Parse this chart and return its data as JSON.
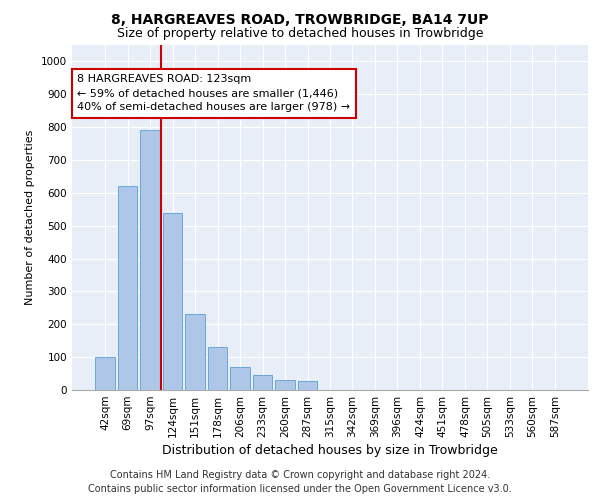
{
  "title": "8, HARGREAVES ROAD, TROWBRIDGE, BA14 7UP",
  "subtitle": "Size of property relative to detached houses in Trowbridge",
  "xlabel": "Distribution of detached houses by size in Trowbridge",
  "ylabel": "Number of detached properties",
  "categories": [
    "42sqm",
    "69sqm",
    "97sqm",
    "124sqm",
    "151sqm",
    "178sqm",
    "206sqm",
    "233sqm",
    "260sqm",
    "287sqm",
    "315sqm",
    "342sqm",
    "369sqm",
    "396sqm",
    "424sqm",
    "451sqm",
    "478sqm",
    "505sqm",
    "533sqm",
    "560sqm",
    "587sqm"
  ],
  "values": [
    100,
    620,
    790,
    540,
    230,
    130,
    70,
    45,
    30,
    28,
    0,
    0,
    0,
    0,
    0,
    0,
    0,
    0,
    0,
    0,
    0
  ],
  "bar_color": "#aec6e8",
  "bar_edge_color": "#5a9fd4",
  "vline_color": "#cc0000",
  "vline_bin_index": 3,
  "annotation_text": "8 HARGREAVES ROAD: 123sqm\n← 59% of detached houses are smaller (1,446)\n40% of semi-detached houses are larger (978) →",
  "annotation_box_color": "#ffffff",
  "annotation_box_edge_color": "#cc0000",
  "annotation_fontsize": 8.0,
  "ylim": [
    0,
    1050
  ],
  "yticks": [
    0,
    100,
    200,
    300,
    400,
    500,
    600,
    700,
    800,
    900,
    1000
  ],
  "footer_line1": "Contains HM Land Registry data © Crown copyright and database right 2024.",
  "footer_line2": "Contains public sector information licensed under the Open Government Licence v3.0.",
  "plot_bg_color": "#e8eef7",
  "title_fontsize": 10,
  "subtitle_fontsize": 9,
  "xlabel_fontsize": 9,
  "ylabel_fontsize": 8,
  "tick_fontsize": 7.5,
  "footer_fontsize": 7
}
